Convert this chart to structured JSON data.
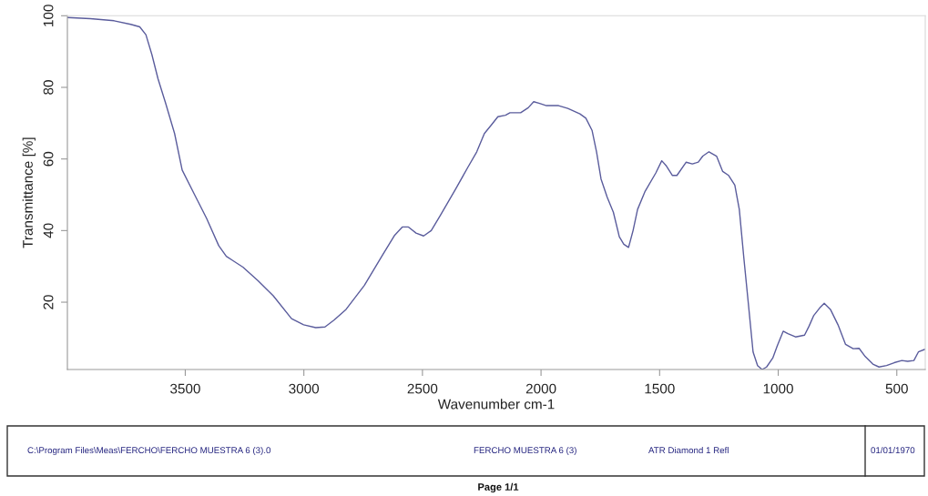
{
  "chart_data": {
    "type": "line",
    "xlabel": "Wavenumber cm-1",
    "ylabel": "Transmittance [%]",
    "x": [
      3997,
      3900,
      3800,
      3730,
      3692,
      3666,
      3641,
      3615,
      3583,
      3545,
      3513,
      3462,
      3410,
      3359,
      3327,
      3257,
      3193,
      3129,
      3052,
      3001,
      2950,
      2911,
      2873,
      2822,
      2745,
      2668,
      2617,
      2585,
      2559,
      2527,
      2495,
      2463,
      2425,
      2361,
      2310,
      2271,
      2239,
      2207,
      2182,
      2150,
      2131,
      2086,
      2054,
      2031,
      2009,
      1977,
      1926,
      1887,
      1836,
      1811,
      1785,
      1766,
      1747,
      1721,
      1695,
      1670,
      1651,
      1631,
      1612,
      1593,
      1561,
      1516,
      1491,
      1471,
      1446,
      1427,
      1388,
      1362,
      1337,
      1318,
      1292,
      1260,
      1234,
      1209,
      1183,
      1164,
      1145,
      1126,
      1106,
      1087,
      1068,
      1049,
      1023,
      1004,
      979,
      959,
      927,
      889,
      870,
      850,
      825,
      806,
      780,
      748,
      716,
      684,
      659,
      633,
      601,
      575,
      543,
      511,
      479,
      454,
      428,
      409,
      383
    ],
    "series": [
      {
        "color": "#5a5c9c",
        "values": [
          99.5,
          99.2,
          98.6,
          97.6,
          96.9,
          94.7,
          89.2,
          82.4,
          75.6,
          67.1,
          56.9,
          50.2,
          43.4,
          35.8,
          32.8,
          29.8,
          26.0,
          21.8,
          15.4,
          13.7,
          12.9,
          13.1,
          15.0,
          18.0,
          24.7,
          33.2,
          38.7,
          41.0,
          41.0,
          39.3,
          38.5,
          40.0,
          44.2,
          51.5,
          57.5,
          62.0,
          67.1,
          69.7,
          71.8,
          72.2,
          72.9,
          72.9,
          74.3,
          76.0,
          75.6,
          74.9,
          74.9,
          74.1,
          72.6,
          71.4,
          68.0,
          62.0,
          54.4,
          49.3,
          45.1,
          38.3,
          36.2,
          35.3,
          40.0,
          45.9,
          51.0,
          56.1,
          59.5,
          58.0,
          55.4,
          55.4,
          59.1,
          58.6,
          59.1,
          60.8,
          62.0,
          60.8,
          56.5,
          55.4,
          52.7,
          45.9,
          32.4,
          19.7,
          6.1,
          2.3,
          1.2,
          1.9,
          4.4,
          7.8,
          11.9,
          11.2,
          10.3,
          10.8,
          13.3,
          16.3,
          18.4,
          19.7,
          18.0,
          13.7,
          8.2,
          7.0,
          7.1,
          4.8,
          2.7,
          1.9,
          2.3,
          3.1,
          3.7,
          3.5,
          3.7,
          6.1,
          6.8
        ]
      }
    ],
    "xlim": [
      3997,
      380
    ],
    "ylim": [
      1.2,
      100
    ],
    "xticks": [
      3500,
      3000,
      2500,
      2000,
      1500,
      1000,
      500
    ],
    "yticks": [
      20,
      40,
      60,
      80,
      100
    ],
    "line_style": "solid",
    "annotations": [
      "C:\\Program Files\\Meas\\FERCHO\\FERCHO MUESTRA 6 (3).0",
      "FERCHO MUESTRA 6 (3)",
      "ATR Diamond 1 Refl",
      "01/01/1970",
      "Page 1/1"
    ]
  }
}
